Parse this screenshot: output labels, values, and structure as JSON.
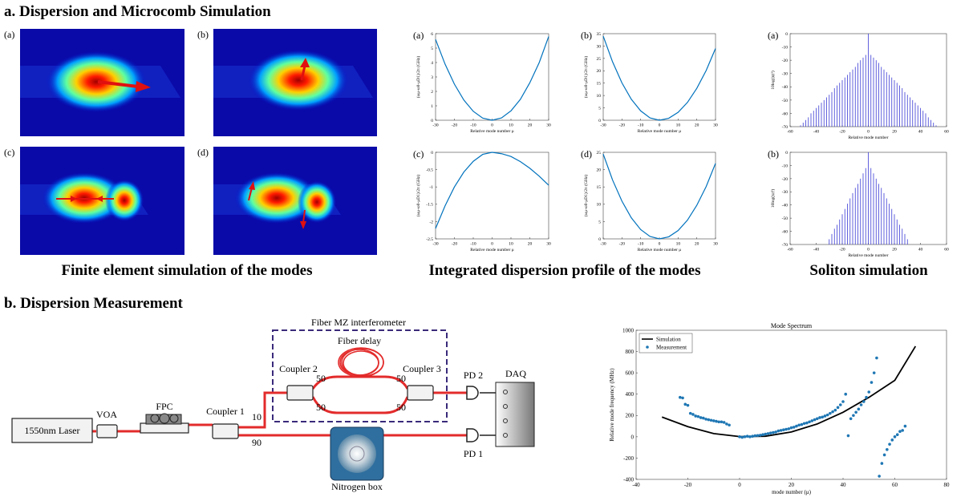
{
  "panel_a": {
    "title": "a. Dispersion and Microcomb Simulation",
    "captions": [
      "Finite element simulation of the modes",
      "Integrated dispersion profile of the modes",
      "Soliton simulation"
    ]
  },
  "fem": {
    "labels": [
      "(a)",
      "(b)",
      "(c)",
      "(d)"
    ]
  },
  "panel_b": {
    "title": "b. Dispersion Measurement"
  },
  "diagram": {
    "interferometer": "Fiber MZ interferometer",
    "delay": "Fiber delay",
    "coupler2": "Coupler 2",
    "coupler3": "Coupler 3",
    "ratios": [
      "50",
      "50",
      "50",
      "50"
    ],
    "split": [
      "10",
      "90"
    ],
    "pd2": "PD 2",
    "pd1": "PD 1",
    "daq": "DAQ",
    "laser": "1550nm Laser",
    "voa": "VOA",
    "fpc": "FPC",
    "coupler1": "Coupler 1",
    "nitrogen": "Nitrogen box"
  },
  "chart_data": [
    {
      "type": "line",
      "label": "(a)",
      "xlabel": "Relative mode number μ",
      "ylabel": "(ωμ-ω0-μD1)/2π (GHz)",
      "color": "#0072bd",
      "x": [
        -30,
        -25,
        -20,
        -15,
        -10,
        -5,
        0,
        5,
        10,
        15,
        20,
        25,
        30
      ],
      "values": [
        5.6,
        3.9,
        2.5,
        1.4,
        0.62,
        0.15,
        0,
        0.16,
        0.65,
        1.45,
        2.6,
        4.0,
        5.8
      ],
      "xlim": [
        -30,
        30
      ],
      "xticks": [
        -30,
        -20,
        -10,
        0,
        10,
        20,
        30
      ],
      "ylim": [
        0,
        6
      ],
      "yticks": [
        0,
        1,
        2,
        3,
        4,
        5,
        6
      ]
    },
    {
      "type": "line",
      "label": "(b)",
      "xlabel": "Relative mode number μ",
      "ylabel": "(ωμ-ω0-μD1)/2π (GHz)",
      "color": "#0072bd",
      "x": [
        -30,
        -25,
        -20,
        -15,
        -10,
        -5,
        0,
        5,
        10,
        15,
        20,
        25,
        30
      ],
      "values": [
        34,
        23.6,
        15.1,
        8.5,
        3.8,
        0.95,
        0,
        0.8,
        3.2,
        7.2,
        12.9,
        20.1,
        29
      ],
      "xlim": [
        -30,
        30
      ],
      "xticks": [
        -30,
        -20,
        -10,
        0,
        10,
        20,
        30
      ],
      "ylim": [
        0,
        35
      ],
      "yticks": [
        0,
        5,
        10,
        15,
        20,
        25,
        30,
        35
      ]
    },
    {
      "type": "line",
      "label": "(c)",
      "xlabel": "Relative mode number μ",
      "ylabel": "(ωμ-ω0-μD1)/2π (GHz)",
      "color": "#0072bd",
      "x": [
        -30,
        -25,
        -20,
        -15,
        -10,
        -5,
        0,
        5,
        10,
        15,
        20,
        25,
        30
      ],
      "values": [
        -2.2,
        -1.55,
        -1.0,
        -0.57,
        -0.26,
        -0.06,
        0,
        -0.04,
        -0.12,
        -0.27,
        -0.46,
        -0.69,
        -0.95
      ],
      "xlim": [
        -30,
        30
      ],
      "xticks": [
        -30,
        -20,
        -10,
        0,
        10,
        20,
        30
      ],
      "ylim": [
        -2.5,
        0
      ],
      "yticks": [
        -2.5,
        -2,
        -1.5,
        -1,
        -0.5,
        0
      ]
    },
    {
      "type": "line",
      "label": "(d)",
      "xlabel": "Relative mode number μ",
      "ylabel": "(ωμ-ω0-μD1)/2π (GHz)",
      "color": "#0072bd",
      "x": [
        -30,
        -25,
        -20,
        -15,
        -10,
        -5,
        0,
        5,
        10,
        15,
        20,
        25,
        30
      ],
      "values": [
        24.5,
        17,
        10.9,
        6.1,
        2.7,
        0.7,
        0,
        0.6,
        2.4,
        5.4,
        9.7,
        15.1,
        21.8
      ],
      "xlim": [
        -30,
        30
      ],
      "xticks": [
        -30,
        -20,
        -10,
        0,
        10,
        20,
        30
      ],
      "ylim": [
        0,
        25
      ],
      "yticks": [
        0,
        5,
        10,
        15,
        20,
        25
      ]
    },
    {
      "type": "bar",
      "label": "(a)",
      "xlabel": "Relative mode number",
      "ylabel": "10log(|ψ|²)",
      "color": "#3a3ad6",
      "x": [
        -52,
        -50,
        -48,
        -46,
        -44,
        -42,
        -40,
        -38,
        -36,
        -34,
        -32,
        -30,
        -28,
        -26,
        -24,
        -22,
        -20,
        -18,
        -16,
        -14,
        -12,
        -10,
        -8,
        -6,
        -4,
        -2,
        0,
        2,
        4,
        6,
        8,
        10,
        12,
        14,
        16,
        18,
        20,
        22,
        24,
        26,
        28,
        30,
        32,
        34,
        36,
        38,
        40,
        42,
        44,
        46,
        48,
        50,
        52
      ],
      "values": [
        -69,
        -67,
        -65,
        -63,
        -60,
        -58,
        -56,
        -54,
        -52,
        -50,
        -48,
        -46,
        -44,
        -41,
        -39,
        -37,
        -35,
        -33,
        -31,
        -29,
        -27,
        -25,
        -22,
        -20,
        -18,
        -16,
        0,
        -16,
        -18,
        -20,
        -22,
        -25,
        -27,
        -29,
        -31,
        -33,
        -35,
        -37,
        -39,
        -41,
        -44,
        -46,
        -48,
        -50,
        -52,
        -54,
        -56,
        -58,
        -60,
        -63,
        -65,
        -67,
        -69
      ],
      "xlim": [
        -60,
        60
      ],
      "xticks": [
        -60,
        -40,
        -20,
        0,
        20,
        40,
        60
      ],
      "ylim": [
        -70,
        0
      ],
      "yticks": [
        -70,
        -60,
        -50,
        -40,
        -30,
        -20,
        -10,
        0
      ]
    },
    {
      "type": "bar",
      "label": "(b)",
      "xlabel": "Relative mode number",
      "ylabel": "10log(|ψ|²)",
      "color": "#3a3ad6",
      "x": [
        -32,
        -30,
        -28,
        -26,
        -24,
        -22,
        -20,
        -18,
        -16,
        -14,
        -12,
        -10,
        -8,
        -6,
        -4,
        -2,
        0,
        2,
        4,
        6,
        8,
        10,
        12,
        14,
        16,
        18,
        20,
        22,
        24,
        26,
        28,
        30,
        32
      ],
      "values": [
        -70,
        -66,
        -62,
        -58,
        -55,
        -51,
        -47,
        -43,
        -39,
        -35,
        -31,
        -27,
        -24,
        -20,
        -16,
        -12,
        0,
        -12,
        -16,
        -20,
        -24,
        -27,
        -31,
        -35,
        -39,
        -43,
        -47,
        -51,
        -55,
        -58,
        -62,
        -66,
        -70
      ],
      "xlim": [
        -60,
        60
      ],
      "xticks": [
        -60,
        -40,
        -20,
        0,
        20,
        40,
        60
      ],
      "ylim": [
        -70,
        0
      ],
      "yticks": [
        -70,
        -60,
        -50,
        -40,
        -30,
        -20,
        -10,
        0
      ]
    },
    {
      "type": "line",
      "title": "Mode Spectrum",
      "xlabel": "mode number (μ)",
      "ylabel": "Relative mode frequency (MHz)",
      "legend": "upper left",
      "xlim": [
        -40,
        80
      ],
      "xticks": [
        -40,
        -20,
        0,
        20,
        40,
        60,
        80
      ],
      "ylim": [
        -400,
        1000
      ],
      "yticks": [
        -400,
        -200,
        0,
        200,
        400,
        600,
        800,
        1000
      ],
      "series": [
        {
          "name": "Simulation",
          "kind": "line",
          "color": "#000000",
          "x": [
            -30,
            -20,
            -10,
            0,
            10,
            20,
            30,
            40,
            50,
            60,
            68
          ],
          "values": [
            185,
            95,
            30,
            2,
            5,
            45,
            120,
            230,
            370,
            530,
            850
          ]
        },
        {
          "name": "Measurement",
          "kind": "scatter",
          "color": "#1f77b4",
          "x": [
            -23,
            -22,
            -21,
            -20,
            -19,
            -18,
            -17,
            -16,
            -15,
            -14,
            -13,
            -12,
            -11,
            -10,
            -9,
            -8,
            -7,
            -6,
            -5,
            -4,
            0,
            1,
            2,
            3,
            4,
            5,
            6,
            7,
            8,
            9,
            10,
            11,
            12,
            13,
            14,
            15,
            16,
            17,
            18,
            19,
            20,
            21,
            22,
            23,
            24,
            25,
            26,
            27,
            28,
            29,
            30,
            31,
            32,
            33,
            34,
            35,
            36,
            37,
            38,
            39,
            40,
            41,
            42,
            43,
            44,
            45,
            46,
            47,
            48,
            49,
            50,
            51,
            52,
            53,
            54,
            55,
            56,
            57,
            58,
            59,
            60,
            61,
            62,
            63,
            64
          ],
          "values": [
            370,
            365,
            305,
            295,
            220,
            210,
            195,
            190,
            180,
            175,
            165,
            160,
            155,
            150,
            145,
            140,
            140,
            135,
            120,
            110,
            0,
            -5,
            0,
            5,
            0,
            5,
            10,
            12,
            15,
            20,
            25,
            30,
            35,
            40,
            45,
            55,
            60,
            65,
            70,
            75,
            85,
            90,
            100,
            110,
            115,
            125,
            130,
            140,
            150,
            160,
            170,
            180,
            185,
            195,
            205,
            220,
            235,
            250,
            275,
            300,
            330,
            400,
            10,
            170,
            200,
            230,
            260,
            300,
            330,
            370,
            420,
            510,
            600,
            740,
            -370,
            -250,
            -170,
            -120,
            -70,
            -30,
            0,
            20,
            50,
            60,
            100
          ]
        }
      ]
    }
  ]
}
